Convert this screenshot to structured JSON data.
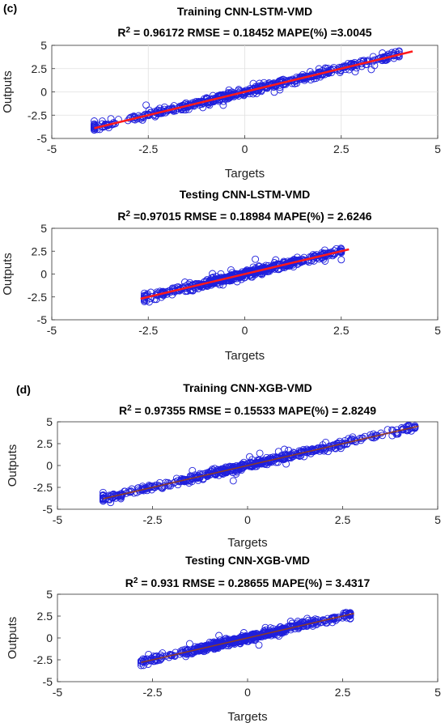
{
  "panel_labels": {
    "c": "(c)",
    "d": "(d)"
  },
  "colors": {
    "points": "#1f1fdc",
    "fit_red": "#ff1a1a",
    "fit_dark": "#8a3a2a",
    "band": "#f5a8c8"
  },
  "chart_data": [
    {
      "type": "scatter",
      "title": "Training CNN-LSTM-VMD",
      "stats": {
        "r2_label": "R",
        "r2_value": " = 0.96172",
        "rmse": "RMSE = 0.18452",
        "mape": "MAPE(%) =3.0045"
      },
      "xlabel": "Targets",
      "ylabel": "Outputs",
      "xlim": [
        -5,
        5
      ],
      "ylim": [
        -5,
        5
      ],
      "xticks": [
        "-5",
        "-2.5",
        "0",
        "2.5",
        "5"
      ],
      "yticks": [
        "5",
        "2.5",
        "0",
        "-2.5",
        "-5"
      ],
      "grid": true,
      "data_range": [
        -3.9,
        4.0
      ],
      "fit": {
        "x": [
          -3.9,
          4.35
        ],
        "y": [
          -3.9,
          4.35
        ]
      },
      "line_color": "red"
    },
    {
      "type": "scatter",
      "title": "Testing CNN-LSTM-VMD",
      "stats": {
        "r2_label": "R",
        "r2_value": " =0.97015",
        "rmse": "RMSE = 0.18984",
        "mape": "MAPE(%)  = 2.6246"
      },
      "xlabel": "Targets",
      "ylabel": "Outputs",
      "xlim": [
        -5,
        5
      ],
      "ylim": [
        -5,
        5
      ],
      "xticks": [
        "-5",
        "-2.5",
        "0",
        "2.5",
        "5"
      ],
      "yticks": [
        "5",
        "2.5",
        "0",
        "-2.5",
        "-5"
      ],
      "grid": false,
      "data_range": [
        -2.6,
        2.5
      ],
      "fit": {
        "x": [
          -2.7,
          2.7
        ],
        "y": [
          -2.7,
          2.7
        ]
      },
      "line_color": "red"
    },
    {
      "type": "scatter",
      "title": "Training CNN-XGB-VMD",
      "stats": {
        "r2_label": "R",
        "r2_value": " = 0.97355",
        "rmse": "RMSE = 0.15533",
        "mape": "MAPE(%) =  2.8249"
      },
      "xlabel": "Targets",
      "ylabel": "Outputs",
      "xlim": [
        -5,
        5
      ],
      "ylim": [
        -5,
        5
      ],
      "xticks": [
        "-5",
        "-2.5",
        "0",
        "2.5",
        "5"
      ],
      "yticks": [
        "5",
        "2.5",
        "0",
        "-2.5",
        "-5"
      ],
      "grid": false,
      "data_range": [
        -3.8,
        4.4
      ],
      "fit": {
        "x": [
          -3.8,
          4.5
        ],
        "y": [
          -3.8,
          4.5
        ]
      },
      "line_color": "dark"
    },
    {
      "type": "scatter",
      "title": "Testing CNN-XGB-VMD",
      "stats": {
        "r2_label": "R",
        "r2_value": " = 0.931",
        "rmse": "RMSE = 0.28655",
        "mape": "MAPE(%) = 3.4317"
      },
      "xlabel": "Targets",
      "ylabel": "Outputs",
      "xlim": [
        -5,
        5
      ],
      "ylim": [
        -5,
        5
      ],
      "xticks": [
        "-5",
        "-2.5",
        "0",
        "2.5",
        "5"
      ],
      "yticks": [
        "5",
        "2.5",
        "0",
        "-2.5",
        "-5"
      ],
      "grid": false,
      "data_range": [
        -2.8,
        2.7
      ],
      "fit": {
        "x": [
          -2.8,
          2.8
        ],
        "y": [
          -2.8,
          2.8
        ]
      },
      "line_color": "dark"
    }
  ]
}
